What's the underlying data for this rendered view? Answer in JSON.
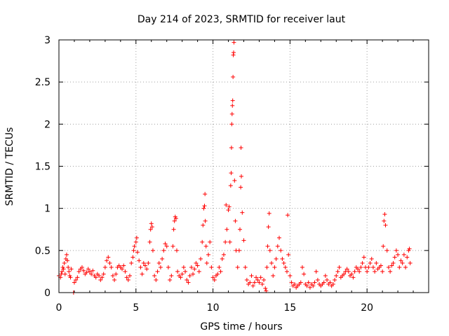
{
  "chart_data": {
    "type": "scatter",
    "title": "Day 214 of 2023, SRMTID for receiver laut",
    "xlabel": "GPS time / hours",
    "ylabel": "SRMTID / TECUs",
    "xlim": [
      0,
      24
    ],
    "ylim": [
      0,
      3
    ],
    "x_ticks": [
      0,
      5,
      10,
      15,
      20
    ],
    "x_tick_labels": [
      "0",
      "5",
      "10",
      "15",
      "20"
    ],
    "y_ticks": [
      0,
      0.5,
      1,
      1.5,
      2,
      2.5,
      3
    ],
    "y_tick_labels": [
      "0",
      "0.5",
      "1",
      "1.5",
      "2",
      "2.5",
      "3"
    ],
    "grid": true,
    "marker": "+",
    "color": "#ff0000",
    "series": [
      {
        "name": "SRMTID",
        "points": [
          [
            0.0,
            0.2
          ],
          [
            0.1,
            0.18
          ],
          [
            0.15,
            0.22
          ],
          [
            0.2,
            0.25
          ],
          [
            0.25,
            0.3
          ],
          [
            0.3,
            0.28
          ],
          [
            0.35,
            0.35
          ],
          [
            0.4,
            0.22
          ],
          [
            0.45,
            0.4
          ],
          [
            0.5,
            0.45
          ],
          [
            0.55,
            0.38
          ],
          [
            0.6,
            0.3
          ],
          [
            0.65,
            0.25
          ],
          [
            0.7,
            0.2
          ],
          [
            0.75,
            0.18
          ],
          [
            0.8,
            0.28
          ],
          [
            0.95,
            0.0
          ],
          [
            1.0,
            0.12
          ],
          [
            1.1,
            0.15
          ],
          [
            1.2,
            0.18
          ],
          [
            1.3,
            0.25
          ],
          [
            1.4,
            0.28
          ],
          [
            1.5,
            0.3
          ],
          [
            1.6,
            0.26
          ],
          [
            1.7,
            0.22
          ],
          [
            1.8,
            0.24
          ],
          [
            1.9,
            0.28
          ],
          [
            2.0,
            0.25
          ],
          [
            2.1,
            0.22
          ],
          [
            2.2,
            0.26
          ],
          [
            2.3,
            0.2
          ],
          [
            2.4,
            0.18
          ],
          [
            2.5,
            0.22
          ],
          [
            2.6,
            0.2
          ],
          [
            2.7,
            0.15
          ],
          [
            2.8,
            0.18
          ],
          [
            2.9,
            0.22
          ],
          [
            3.0,
            0.3
          ],
          [
            3.1,
            0.38
          ],
          [
            3.2,
            0.42
          ],
          [
            3.3,
            0.35
          ],
          [
            3.4,
            0.3
          ],
          [
            3.5,
            0.2
          ],
          [
            3.6,
            0.15
          ],
          [
            3.7,
            0.22
          ],
          [
            3.8,
            0.3
          ],
          [
            3.9,
            0.32
          ],
          [
            4.0,
            0.3
          ],
          [
            4.1,
            0.28
          ],
          [
            4.2,
            0.32
          ],
          [
            4.3,
            0.25
          ],
          [
            4.4,
            0.18
          ],
          [
            4.5,
            0.15
          ],
          [
            4.6,
            0.2
          ],
          [
            4.7,
            0.35
          ],
          [
            4.8,
            0.42
          ],
          [
            4.85,
            0.5
          ],
          [
            4.9,
            0.55
          ],
          [
            5.0,
            0.6
          ],
          [
            5.05,
            0.65
          ],
          [
            5.1,
            0.48
          ],
          [
            5.2,
            0.38
          ],
          [
            5.3,
            0.3
          ],
          [
            5.4,
            0.22
          ],
          [
            5.5,
            0.35
          ],
          [
            5.6,
            0.32
          ],
          [
            5.7,
            0.28
          ],
          [
            5.8,
            0.35
          ],
          [
            5.9,
            0.6
          ],
          [
            5.95,
            0.75
          ],
          [
            6.0,
            0.82
          ],
          [
            6.05,
            0.78
          ],
          [
            6.1,
            0.5
          ],
          [
            6.2,
            0.2
          ],
          [
            6.3,
            0.15
          ],
          [
            6.4,
            0.25
          ],
          [
            6.5,
            0.35
          ],
          [
            6.6,
            0.3
          ],
          [
            6.7,
            0.4
          ],
          [
            6.8,
            0.5
          ],
          [
            6.9,
            0.58
          ],
          [
            7.0,
            0.55
          ],
          [
            7.1,
            0.3
          ],
          [
            7.2,
            0.15
          ],
          [
            7.3,
            0.2
          ],
          [
            7.4,
            0.55
          ],
          [
            7.45,
            0.75
          ],
          [
            7.5,
            0.85
          ],
          [
            7.55,
            0.9
          ],
          [
            7.6,
            0.88
          ],
          [
            7.65,
            0.5
          ],
          [
            7.7,
            0.25
          ],
          [
            7.8,
            0.2
          ],
          [
            7.9,
            0.18
          ],
          [
            8.0,
            0.22
          ],
          [
            8.1,
            0.3
          ],
          [
            8.2,
            0.25
          ],
          [
            8.3,
            0.15
          ],
          [
            8.4,
            0.12
          ],
          [
            8.5,
            0.2
          ],
          [
            8.6,
            0.3
          ],
          [
            8.7,
            0.22
          ],
          [
            8.8,
            0.28
          ],
          [
            8.9,
            0.35
          ],
          [
            9.0,
            0.32
          ],
          [
            9.1,
            0.25
          ],
          [
            9.2,
            0.4
          ],
          [
            9.3,
            0.6
          ],
          [
            9.35,
            0.8
          ],
          [
            9.4,
            1.0
          ],
          [
            9.45,
            1.03
          ],
          [
            9.48,
            1.17
          ],
          [
            9.5,
            0.85
          ],
          [
            9.55,
            0.55
          ],
          [
            9.6,
            0.35
          ],
          [
            9.7,
            0.45
          ],
          [
            9.8,
            0.6
          ],
          [
            9.9,
            0.3
          ],
          [
            10.0,
            0.18
          ],
          [
            10.1,
            0.15
          ],
          [
            10.2,
            0.2
          ],
          [
            10.3,
            0.22
          ],
          [
            10.4,
            0.3
          ],
          [
            10.5,
            0.25
          ],
          [
            10.6,
            0.4
          ],
          [
            10.7,
            0.45
          ],
          [
            10.8,
            0.6
          ],
          [
            10.85,
            1.04
          ],
          [
            10.9,
            0.75
          ],
          [
            11.0,
            0.98
          ],
          [
            11.05,
            1.02
          ],
          [
            11.1,
            0.6
          ],
          [
            11.15,
            1.27
          ],
          [
            11.18,
            1.42
          ],
          [
            11.2,
            1.72
          ],
          [
            11.22,
            2.0
          ],
          [
            11.24,
            2.12
          ],
          [
            11.26,
            2.22
          ],
          [
            11.28,
            2.28
          ],
          [
            11.3,
            2.56
          ],
          [
            11.32,
            2.82
          ],
          [
            11.34,
            2.85
          ],
          [
            11.36,
            2.97
          ],
          [
            11.4,
            1.33
          ],
          [
            11.45,
            0.85
          ],
          [
            11.5,
            0.5
          ],
          [
            11.6,
            0.3
          ],
          [
            11.7,
            0.5
          ],
          [
            11.75,
            0.75
          ],
          [
            11.8,
            1.25
          ],
          [
            11.82,
            1.72
          ],
          [
            11.84,
            1.38
          ],
          [
            11.9,
            0.95
          ],
          [
            12.0,
            0.62
          ],
          [
            12.1,
            0.3
          ],
          [
            12.2,
            0.15
          ],
          [
            12.3,
            0.1
          ],
          [
            12.4,
            0.12
          ],
          [
            12.5,
            0.2
          ],
          [
            12.6,
            0.08
          ],
          [
            12.7,
            0.12
          ],
          [
            12.8,
            0.18
          ],
          [
            12.9,
            0.15
          ],
          [
            13.0,
            0.12
          ],
          [
            13.1,
            0.18
          ],
          [
            13.2,
            0.1
          ],
          [
            13.3,
            0.15
          ],
          [
            13.4,
            0.05
          ],
          [
            13.45,
            0.02
          ],
          [
            13.5,
            0.3
          ],
          [
            13.55,
            0.55
          ],
          [
            13.6,
            0.78
          ],
          [
            13.65,
            0.94
          ],
          [
            13.7,
            0.5
          ],
          [
            13.8,
            0.35
          ],
          [
            13.9,
            0.2
          ],
          [
            14.0,
            0.3
          ],
          [
            14.1,
            0.4
          ],
          [
            14.2,
            0.55
          ],
          [
            14.3,
            0.65
          ],
          [
            14.4,
            0.5
          ],
          [
            14.5,
            0.4
          ],
          [
            14.6,
            0.35
          ],
          [
            14.7,
            0.3
          ],
          [
            14.8,
            0.25
          ],
          [
            14.85,
            0.92
          ],
          [
            14.9,
            0.45
          ],
          [
            15.0,
            0.2
          ],
          [
            15.1,
            0.12
          ],
          [
            15.2,
            0.08
          ],
          [
            15.3,
            0.1
          ],
          [
            15.4,
            0.06
          ],
          [
            15.5,
            0.08
          ],
          [
            15.6,
            0.1
          ],
          [
            15.7,
            0.12
          ],
          [
            15.8,
            0.3
          ],
          [
            15.9,
            0.22
          ],
          [
            16.0,
            0.1
          ],
          [
            16.1,
            0.08
          ],
          [
            16.2,
            0.12
          ],
          [
            16.3,
            0.06
          ],
          [
            16.4,
            0.1
          ],
          [
            16.5,
            0.08
          ],
          [
            16.6,
            0.12
          ],
          [
            16.7,
            0.25
          ],
          [
            16.8,
            0.15
          ],
          [
            16.9,
            0.1
          ],
          [
            17.0,
            0.08
          ],
          [
            17.1,
            0.1
          ],
          [
            17.2,
            0.12
          ],
          [
            17.3,
            0.2
          ],
          [
            17.4,
            0.15
          ],
          [
            17.5,
            0.1
          ],
          [
            17.6,
            0.12
          ],
          [
            17.7,
            0.08
          ],
          [
            17.8,
            0.1
          ],
          [
            17.9,
            0.15
          ],
          [
            18.0,
            0.2
          ],
          [
            18.1,
            0.25
          ],
          [
            18.2,
            0.3
          ],
          [
            18.3,
            0.18
          ],
          [
            18.4,
            0.2
          ],
          [
            18.5,
            0.22
          ],
          [
            18.6,
            0.25
          ],
          [
            18.7,
            0.28
          ],
          [
            18.8,
            0.25
          ],
          [
            18.9,
            0.2
          ],
          [
            19.0,
            0.22
          ],
          [
            19.1,
            0.18
          ],
          [
            19.2,
            0.25
          ],
          [
            19.3,
            0.3
          ],
          [
            19.4,
            0.28
          ],
          [
            19.5,
            0.25
          ],
          [
            19.6,
            0.3
          ],
          [
            19.7,
            0.35
          ],
          [
            19.8,
            0.42
          ],
          [
            19.9,
            0.3
          ],
          [
            20.0,
            0.25
          ],
          [
            20.1,
            0.3
          ],
          [
            20.2,
            0.35
          ],
          [
            20.3,
            0.4
          ],
          [
            20.4,
            0.3
          ],
          [
            20.5,
            0.25
          ],
          [
            20.6,
            0.35
          ],
          [
            20.7,
            0.28
          ],
          [
            20.8,
            0.3
          ],
          [
            20.9,
            0.32
          ],
          [
            21.0,
            0.25
          ],
          [
            21.05,
            0.55
          ],
          [
            21.1,
            0.85
          ],
          [
            21.15,
            0.93
          ],
          [
            21.2,
            0.8
          ],
          [
            21.3,
            0.5
          ],
          [
            21.4,
            0.3
          ],
          [
            21.5,
            0.25
          ],
          [
            21.6,
            0.32
          ],
          [
            21.7,
            0.35
          ],
          [
            21.8,
            0.42
          ],
          [
            21.9,
            0.5
          ],
          [
            22.0,
            0.45
          ],
          [
            22.1,
            0.3
          ],
          [
            22.2,
            0.38
          ],
          [
            22.3,
            0.35
          ],
          [
            22.4,
            0.45
          ],
          [
            22.5,
            0.3
          ],
          [
            22.6,
            0.42
          ],
          [
            22.7,
            0.5
          ],
          [
            22.75,
            0.52
          ],
          [
            22.8,
            0.35
          ]
        ]
      }
    ]
  }
}
